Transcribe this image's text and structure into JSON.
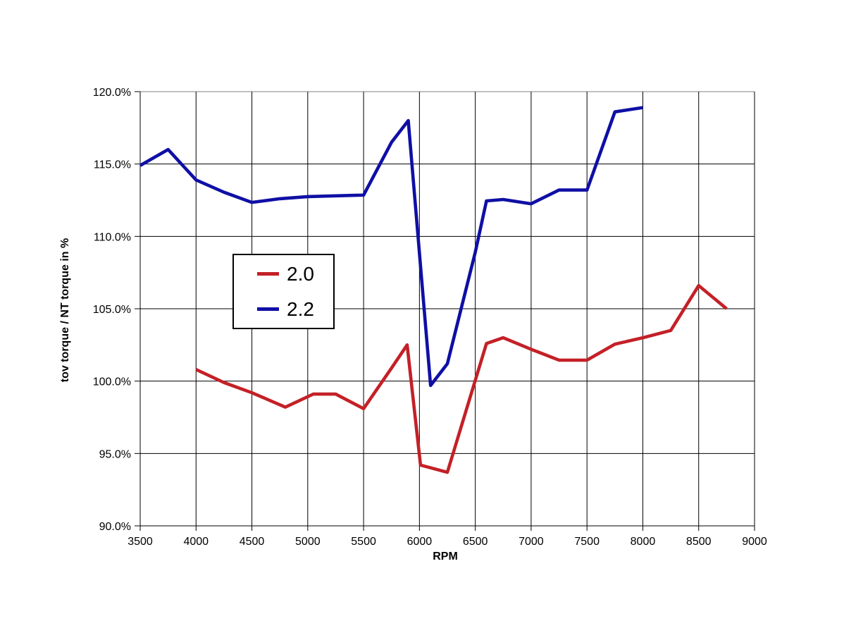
{
  "chart_data": {
    "type": "line",
    "title": "",
    "xlabel": "RPM",
    "ylabel": "tov torque / NT torque in %",
    "xlim": [
      3500,
      9000
    ],
    "ylim": [
      90,
      120
    ],
    "grid": true,
    "legend_position": "inside-upper-left",
    "x_ticks": [
      3500,
      4000,
      4500,
      5000,
      5500,
      6000,
      6500,
      7000,
      7500,
      8000,
      8500,
      9000
    ],
    "x_tick_labels": [
      "3500",
      "4000",
      "4500",
      "5000",
      "5500",
      "6000",
      "6500",
      "7000",
      "7500",
      "8000",
      "8500",
      "9000"
    ],
    "y_ticks": [
      90,
      95,
      100,
      105,
      110,
      115,
      120
    ],
    "y_tick_labels": [
      "90.0%",
      "95.0%",
      "100.0%",
      "105.0%",
      "110.0%",
      "115.0%",
      "120.0%"
    ],
    "axis_color": "#000000",
    "gridline_color": "#000000",
    "top_border_color": "#808080",
    "series": [
      {
        "name": "2.0",
        "color": "#C32127",
        "points": [
          [
            4000,
            100.8
          ],
          [
            4250,
            99.9
          ],
          [
            4500,
            99.2
          ],
          [
            4800,
            98.2
          ],
          [
            5050,
            99.1
          ],
          [
            5250,
            99.1
          ],
          [
            5500,
            98.1
          ],
          [
            5750,
            100.9
          ],
          [
            5890,
            102.5
          ],
          [
            6010,
            94.2
          ],
          [
            6250,
            93.7
          ],
          [
            6600,
            102.6
          ],
          [
            6750,
            103.0
          ],
          [
            7000,
            102.2
          ],
          [
            7250,
            101.45
          ],
          [
            7500,
            101.45
          ],
          [
            7750,
            102.55
          ],
          [
            8000,
            103.0
          ],
          [
            8250,
            103.5
          ],
          [
            8500,
            106.6
          ],
          [
            8750,
            105.0
          ]
        ]
      },
      {
        "name": "2.2",
        "color": "#0F0FA5",
        "points": [
          [
            3500,
            114.9
          ],
          [
            3750,
            116.0
          ],
          [
            4000,
            113.9
          ],
          [
            4250,
            113.05
          ],
          [
            4500,
            112.35
          ],
          [
            4750,
            112.6
          ],
          [
            5000,
            112.75
          ],
          [
            5250,
            112.8
          ],
          [
            5500,
            112.85
          ],
          [
            5750,
            116.5
          ],
          [
            5900,
            118.0
          ],
          [
            6100,
            99.7
          ],
          [
            6250,
            101.2
          ],
          [
            6500,
            108.9
          ],
          [
            6600,
            112.45
          ],
          [
            6750,
            112.55
          ],
          [
            7000,
            112.25
          ],
          [
            7250,
            113.2
          ],
          [
            7500,
            113.2
          ],
          [
            7750,
            118.6
          ],
          [
            8000,
            118.9
          ]
        ]
      }
    ]
  }
}
